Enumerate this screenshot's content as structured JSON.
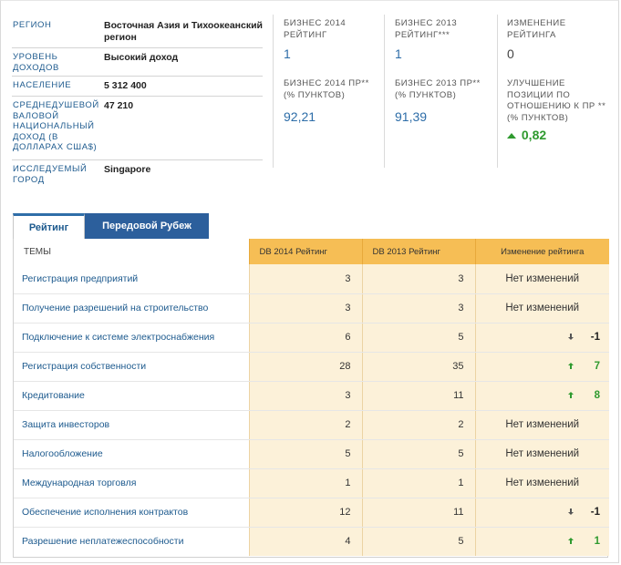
{
  "info": {
    "rows": [
      {
        "label": "РЕГИОН",
        "value": "Восточная Азия и Тихоокеанский регион"
      },
      {
        "label": "УРОВЕНЬ ДОХОДОВ",
        "value": "Высокий доход"
      },
      {
        "label": "НАСЕЛЕНИЕ",
        "value": "5 312 400"
      },
      {
        "label": "СРЕДНЕДУШЕВОЙ ВАЛОВОЙ НАЦИОНАЛЬНЫЙ ДОХОД (В ДОЛЛАРАХ США$)",
        "value": "47 210"
      },
      {
        "label": "ИССЛЕДУЕМЫЙ ГОРОД",
        "value": "Singapore"
      }
    ]
  },
  "stats": {
    "rank2014": {
      "label": "БИЗНЕС 2014 РЕЙТИНГ",
      "value": "1"
    },
    "rank2013": {
      "label": "БИЗНЕС 2013 РЕЙТИНГ***",
      "value": "1"
    },
    "rankChange": {
      "label": "ИЗМЕНЕНИЕ РЕЙТИНГА",
      "value": "0"
    },
    "dtf2014": {
      "label": "БИЗНЕС 2014 ПР** (% ПУНКТОВ)",
      "value": "92,21"
    },
    "dtf2013": {
      "label": "БИЗНЕС 2013 ПР** (% ПУНКТОВ)",
      "value": "91,39"
    },
    "improvement": {
      "label": "УЛУЧШЕНИЕ ПОЗИЦИИ ПО ОТНОШЕНИЮ К ПР ** (% ПУНКТОВ)",
      "value": "0,82"
    }
  },
  "tabs": {
    "active": "Рейтинг",
    "inactive": "Передовой Рубеж"
  },
  "table": {
    "headers": {
      "topics": "ТЕМЫ",
      "rank2014": "DB 2014 Рейтинг",
      "rank2013": "DB 2013 Рейтинг",
      "change": "Изменение рейтинга"
    },
    "no_change_text": "Нет изменений",
    "rows": [
      {
        "name": "Регистрация предприятий",
        "r2014": "3",
        "r2013": "3",
        "dir": "none",
        "delta": ""
      },
      {
        "name": "Получение разрешений на строительство",
        "r2014": "3",
        "r2013": "3",
        "dir": "none",
        "delta": ""
      },
      {
        "name": "Подключение к системе электроснабжения",
        "r2014": "6",
        "r2013": "5",
        "dir": "down",
        "delta": "-1"
      },
      {
        "name": "Регистрация собственности",
        "r2014": "28",
        "r2013": "35",
        "dir": "up",
        "delta": "7"
      },
      {
        "name": "Кредитование",
        "r2014": "3",
        "r2013": "11",
        "dir": "up",
        "delta": "8"
      },
      {
        "name": "Защита инвесторов",
        "r2014": "2",
        "r2013": "2",
        "dir": "none",
        "delta": ""
      },
      {
        "name": "Налогообложение",
        "r2014": "5",
        "r2013": "5",
        "dir": "none",
        "delta": ""
      },
      {
        "name": "Международная торговля",
        "r2014": "1",
        "r2013": "1",
        "dir": "none",
        "delta": ""
      },
      {
        "name": "Обеспечение исполнения контрактов",
        "r2014": "12",
        "r2013": "11",
        "dir": "down",
        "delta": "-1"
      },
      {
        "name": "Разрешение неплатежеспособности",
        "r2014": "4",
        "r2013": "5",
        "dir": "up",
        "delta": "1"
      }
    ]
  }
}
